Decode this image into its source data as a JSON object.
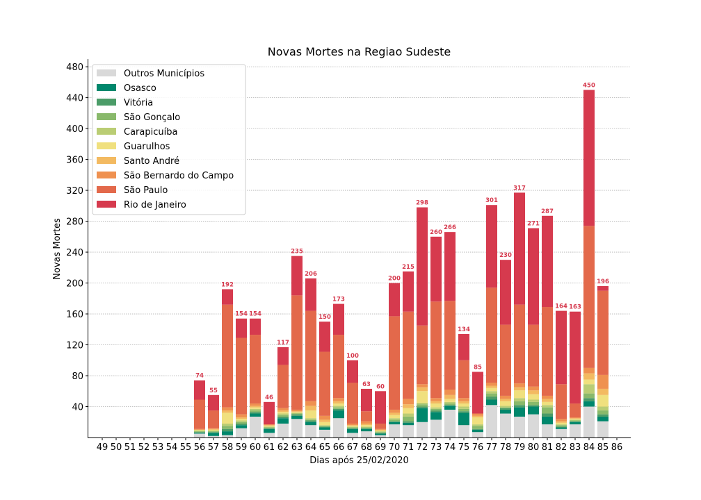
{
  "chart_data": {
    "type": "bar",
    "stacked": true,
    "title": "Novas Mortes na Regiao Sudeste",
    "xlabel": "Dias após 25/02/2020",
    "ylabel": "Novas Mortes",
    "xlim": [
      49,
      86
    ],
    "ylim": [
      0,
      490
    ],
    "yticks": [
      40,
      80,
      120,
      160,
      200,
      240,
      280,
      320,
      360,
      400,
      440,
      480
    ],
    "grid": "horizontal-dotted",
    "legend_position": "top-left",
    "x": [
      56,
      57,
      58,
      59,
      60,
      61,
      62,
      63,
      64,
      65,
      66,
      67,
      68,
      69,
      70,
      71,
      72,
      73,
      74,
      75,
      76,
      77,
      78,
      79,
      80,
      81,
      82,
      83,
      84,
      85
    ],
    "totals": [
      74,
      55,
      192,
      154,
      154,
      46,
      117,
      235,
      206,
      150,
      173,
      100,
      63,
      60,
      200,
      215,
      298,
      260,
      266,
      134,
      85,
      301,
      230,
      317,
      271,
      287,
      164,
      163,
      450,
      196
    ],
    "total_label_color": "#d63a4e",
    "series": [
      {
        "name": "Outros Municípios",
        "color": "#d9d9d9",
        "values": [
          5,
          2,
          3,
          12,
          27,
          6,
          18,
          24,
          16,
          10,
          25,
          6,
          8,
          3,
          17,
          16,
          20,
          23,
          36,
          16,
          7,
          42,
          31,
          27,
          30,
          17,
          11,
          17,
          40,
          21
        ]
      },
      {
        "name": "Osasco",
        "color": "#00876c",
        "values": [
          1,
          4,
          5,
          4,
          4,
          5,
          7,
          4,
          4,
          3,
          10,
          5,
          3,
          2,
          3,
          3,
          18,
          10,
          5,
          16,
          3,
          7,
          5,
          12,
          10,
          10,
          2,
          3,
          7,
          6
        ]
      },
      {
        "name": "Vitória",
        "color": "#4b9c68",
        "values": [
          1,
          1,
          3,
          2,
          2,
          1,
          2,
          2,
          2,
          1,
          2,
          1,
          1,
          1,
          1,
          2,
          2,
          2,
          1,
          2,
          1,
          4,
          2,
          3,
          2,
          4,
          1,
          1,
          4,
          3
        ]
      },
      {
        "name": "São Gonçalo",
        "color": "#89b96b",
        "values": [
          1,
          1,
          4,
          2,
          2,
          1,
          2,
          1,
          1,
          1,
          2,
          1,
          1,
          1,
          2,
          6,
          3,
          2,
          2,
          3,
          4,
          4,
          1,
          5,
          4,
          8,
          2,
          1,
          6,
          5
        ]
      },
      {
        "name": "Carapicuíba",
        "color": "#bacd74",
        "values": [
          1,
          1,
          3,
          2,
          2,
          1,
          2,
          1,
          2,
          1,
          2,
          1,
          1,
          1,
          2,
          4,
          2,
          2,
          2,
          3,
          2,
          3,
          2,
          4,
          3,
          3,
          1,
          1,
          12,
          5
        ]
      },
      {
        "name": "Guarulhos",
        "color": "#f0e07e",
        "values": [
          1,
          1,
          14,
          2,
          2,
          1,
          2,
          1,
          10,
          4,
          3,
          1,
          2,
          1,
          4,
          7,
          15,
          5,
          4,
          4,
          9,
          4,
          6,
          10,
          7,
          4,
          2,
          1,
          6,
          15
        ]
      },
      {
        "name": "Santo André",
        "color": "#f3ba61",
        "values": [
          0,
          1,
          3,
          2,
          2,
          1,
          2,
          1,
          6,
          3,
          3,
          1,
          2,
          1,
          3,
          5,
          5,
          3,
          5,
          3,
          2,
          3,
          3,
          4,
          5,
          4,
          2,
          1,
          8,
          8
        ]
      },
      {
        "name": "São Bernardo do Campo",
        "color": "#ef9150",
        "values": [
          1,
          1,
          4,
          4,
          3,
          1,
          3,
          2,
          6,
          5,
          4,
          2,
          3,
          1,
          4,
          7,
          4,
          4,
          7,
          4,
          3,
          4,
          4,
          5,
          5,
          4,
          3,
          1,
          7,
          18
        ]
      },
      {
        "name": "São Paulo",
        "color": "#e3694b",
        "values": [
          38,
          23,
          133,
          99,
          89,
          0,
          56,
          148,
          117,
          83,
          82,
          53,
          13,
          7,
          121,
          113,
          76,
          125,
          115,
          49,
          0,
          123,
          92,
          102,
          80,
          115,
          45,
          18,
          184,
          109
        ]
      },
      {
        "name": "Rio de Janeiro",
        "color": "#d63a4e",
        "values": [
          25,
          20,
          20,
          25,
          21,
          29,
          23,
          51,
          42,
          39,
          40,
          29,
          29,
          42,
          43,
          52,
          153,
          84,
          89,
          34,
          54,
          107,
          84,
          145,
          125,
          118,
          95,
          119,
          176,
          6
        ]
      }
    ]
  }
}
